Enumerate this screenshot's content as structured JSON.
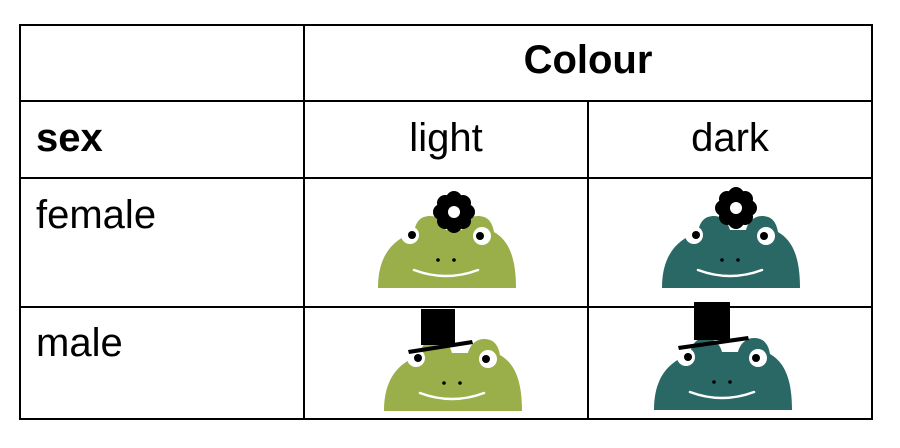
{
  "table": {
    "header_group": "Colour",
    "row_header_label": "sex",
    "columns": [
      "light",
      "dark"
    ],
    "rows": [
      {
        "label": "female",
        "accessory": "flower"
      },
      {
        "label": "male",
        "accessory": "top-hat"
      }
    ]
  },
  "colors": {
    "light_frog": "#9aaf4a",
    "dark_frog": "#2a6866",
    "accessory": "#000000"
  },
  "icons": [
    "frog-icon",
    "flower-icon",
    "top-hat-icon"
  ]
}
